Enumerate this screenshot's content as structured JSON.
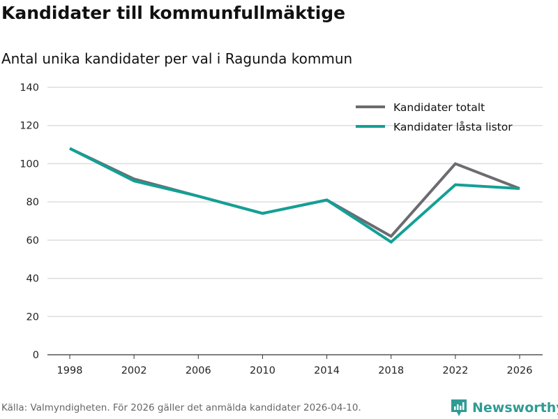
{
  "title": "Kandidater till kommunfullmäktige",
  "subtitle": "Antal unika kandidater per val i Ragunda kommun",
  "source": "Källa: Valmyndigheten. För 2026 gäller det anmälda kandidater 2026-04-10.",
  "brand": "Newsworthy",
  "chart_data": {
    "type": "line",
    "title": "Kandidater till kommunfullmäktige",
    "subtitle": "Antal unika kandidater per val i Ragunda kommun",
    "xlabel": "",
    "ylabel": "",
    "categories": [
      "1998",
      "2002",
      "2006",
      "2010",
      "2014",
      "2018",
      "2022",
      "2026"
    ],
    "ylim": [
      0,
      140
    ],
    "yticks": [
      "0",
      "20",
      "40",
      "60",
      "80",
      "100",
      "120",
      "140"
    ],
    "grid": true,
    "legend_position": "top-right",
    "series": [
      {
        "name": "Kandidater totalt",
        "color": "#6d6b70",
        "values": [
          108,
          92,
          83,
          74,
          81,
          62,
          100,
          87
        ]
      },
      {
        "name": "Kandidater låsta listor",
        "color": "#12a096",
        "values": [
          108,
          91,
          83,
          74,
          81,
          59,
          89,
          87
        ]
      }
    ]
  }
}
